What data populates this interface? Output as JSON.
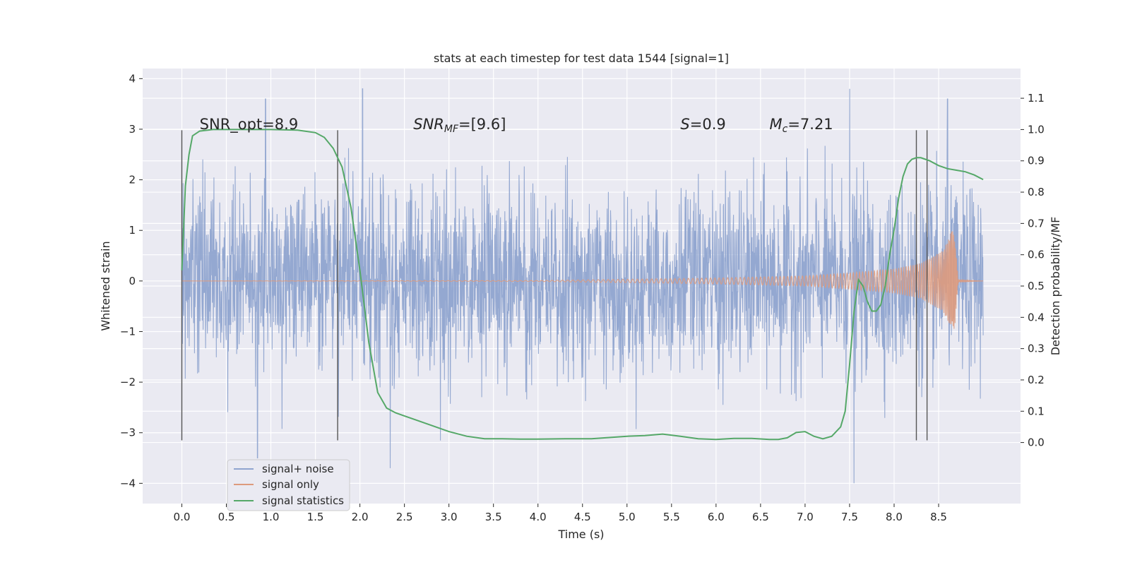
{
  "chart_data": {
    "type": "line",
    "title": "stats at each timestep for test data 1544 [signal=1]",
    "xlabel": "Time (s)",
    "ylabel_left": "Whitened strain",
    "ylabel_right": "Detection probability/MF",
    "xlim": [
      -0.44,
      9.42
    ],
    "ylim_left": [
      -4.4,
      4.2
    ],
    "ylim_right": [
      -0.195,
      1.195
    ],
    "x_ticks": [
      0.0,
      0.5,
      1.0,
      1.5,
      2.0,
      2.5,
      3.0,
      3.5,
      4.0,
      4.5,
      5.0,
      5.5,
      6.0,
      6.5,
      7.0,
      7.5,
      8.0,
      8.5
    ],
    "x_tick_labels": [
      "0.0",
      "0.5",
      "1.0",
      "1.5",
      "2.0",
      "2.5",
      "3.0",
      "3.5",
      "4.0",
      "4.5",
      "5.0",
      "5.5",
      "6.0",
      "6.5",
      "7.0",
      "7.5",
      "8.0",
      "8.5"
    ],
    "y_ticks_left": [
      -4,
      -3,
      -2,
      -1,
      0,
      1,
      2,
      3,
      4
    ],
    "y_tick_labels_left": [
      "−4",
      "−3",
      "−2",
      "−1",
      "0",
      "1",
      "2",
      "3",
      "4"
    ],
    "y_ticks_right": [
      0.0,
      0.1,
      0.2,
      0.3,
      0.4,
      0.5,
      0.6,
      0.7,
      0.8,
      0.9,
      1.0,
      1.1
    ],
    "y_tick_labels_right": [
      "0.0",
      "0.1",
      "0.2",
      "0.3",
      "0.4",
      "0.5",
      "0.6",
      "0.7",
      "0.8",
      "0.9",
      "1.0",
      "1.1"
    ],
    "annotations": [
      {
        "id": "snr-opt",
        "text": "SNR_opt=8.9",
        "x": 0.2,
        "y": 3.0,
        "italic_prefix": ""
      },
      {
        "id": "snr-mf",
        "text": "=[9.6]",
        "x": 2.6,
        "y": 3.0,
        "italic_prefix": "SNR",
        "subscript": "MF"
      },
      {
        "id": "s-stat",
        "text": "=0.9",
        "x": 5.6,
        "y": 3.0,
        "italic_prefix": "S"
      },
      {
        "id": "mc-stat",
        "text": "=7.21",
        "x": 6.6,
        "y": 3.0,
        "italic_prefix": "M",
        "subscript": "c"
      }
    ],
    "vlines": [
      {
        "x": 0.0,
        "y0": -3.15,
        "y1": 2.98
      },
      {
        "x": 1.75,
        "y0": -3.15,
        "y1": 2.98
      },
      {
        "x": 8.25,
        "y0": -3.15,
        "y1": 2.98
      },
      {
        "x": 8.37,
        "y0": -3.15,
        "y1": 2.98
      }
    ],
    "series": [
      {
        "name": "signal+ noise",
        "color": "#8fa4cf",
        "axis": "left",
        "kind": "noise",
        "t_start": 0.0,
        "t_end": 9.0,
        "band_sigma": 0.9,
        "approx_extremes": [
          {
            "t": 0.94,
            "v": 3.6
          },
          {
            "t": 2.03,
            "v": 3.8
          },
          {
            "t": 7.5,
            "v": 3.8
          },
          {
            "t": 8.6,
            "v": 3.6
          },
          {
            "t": 2.34,
            "v": -3.7
          },
          {
            "t": 7.55,
            "v": -4.0
          },
          {
            "t": 0.85,
            "v": -3.5
          }
        ]
      },
      {
        "name": "signal only",
        "color": "#dd9a7d",
        "axis": "left",
        "kind": "chirp",
        "t_start": 0.0,
        "t_merger": 8.7,
        "t_end": 9.0,
        "amplitude_envelope": [
          {
            "t": 0.0,
            "a": 0.0
          },
          {
            "t": 4.0,
            "a": 0.01
          },
          {
            "t": 6.0,
            "a": 0.06
          },
          {
            "t": 7.0,
            "a": 0.1
          },
          {
            "t": 7.5,
            "a": 0.16
          },
          {
            "t": 8.0,
            "a": 0.24
          },
          {
            "t": 8.3,
            "a": 0.35
          },
          {
            "t": 8.55,
            "a": 0.6
          },
          {
            "t": 8.65,
            "a": 1.0
          },
          {
            "t": 8.68,
            "a": 0.95
          },
          {
            "t": 8.72,
            "a": 0.02
          },
          {
            "t": 9.0,
            "a": 0.0
          }
        ]
      },
      {
        "name": "signal statistics",
        "color": "#55a868",
        "axis": "right",
        "kind": "line",
        "x": [
          0.0,
          0.04,
          0.08,
          0.12,
          0.2,
          0.35,
          0.6,
          1.0,
          1.3,
          1.5,
          1.6,
          1.7,
          1.8,
          1.9,
          2.0,
          2.1,
          2.2,
          2.3,
          2.4,
          2.5,
          2.6,
          2.8,
          3.0,
          3.2,
          3.4,
          3.6,
          3.8,
          4.0,
          4.3,
          4.6,
          4.8,
          5.0,
          5.2,
          5.4,
          5.6,
          5.8,
          6.0,
          6.2,
          6.4,
          6.6,
          6.7,
          6.8,
          6.9,
          7.0,
          7.1,
          7.2,
          7.3,
          7.4,
          7.45,
          7.5,
          7.55,
          7.6,
          7.65,
          7.7,
          7.75,
          7.8,
          7.85,
          7.9,
          7.95,
          8.0,
          8.05,
          8.1,
          8.15,
          8.2,
          8.25,
          8.3,
          8.35,
          8.4,
          8.5,
          8.6,
          8.7,
          8.8,
          8.9,
          9.0
        ],
        "y": [
          0.55,
          0.82,
          0.92,
          0.98,
          0.995,
          1.0,
          1.0,
          1.0,
          0.998,
          0.99,
          0.975,
          0.94,
          0.88,
          0.75,
          0.55,
          0.32,
          0.16,
          0.11,
          0.095,
          0.085,
          0.075,
          0.055,
          0.035,
          0.02,
          0.012,
          0.012,
          0.011,
          0.011,
          0.012,
          0.012,
          0.016,
          0.02,
          0.022,
          0.027,
          0.02,
          0.012,
          0.01,
          0.013,
          0.013,
          0.01,
          0.01,
          0.015,
          0.032,
          0.035,
          0.02,
          0.012,
          0.02,
          0.05,
          0.1,
          0.25,
          0.42,
          0.52,
          0.5,
          0.45,
          0.42,
          0.42,
          0.44,
          0.5,
          0.6,
          0.68,
          0.78,
          0.85,
          0.89,
          0.905,
          0.91,
          0.91,
          0.905,
          0.9,
          0.885,
          0.875,
          0.87,
          0.865,
          0.855,
          0.84
        ]
      }
    ],
    "legend": {
      "position": "lower-left",
      "entries": [
        "signal+ noise",
        "signal only",
        "signal statistics"
      ]
    }
  },
  "colors": {
    "plot_background": "#eaeaf2",
    "grid": "#ffffff",
    "text": "#262626",
    "vline": "#555555"
  }
}
